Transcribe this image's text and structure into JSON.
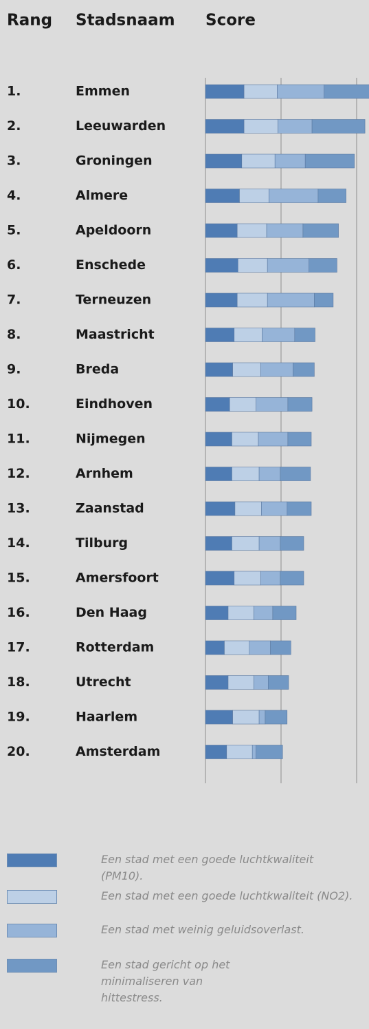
{
  "chart_data": {
    "type": "bar",
    "orientation": "horizontal",
    "stacked": true,
    "column_headers": [
      "Rang",
      "Stadsnaam",
      "Score"
    ],
    "ranks": [
      "1.",
      "2.",
      "3.",
      "4.",
      "5.",
      "6.",
      "7.",
      "8.",
      "9.",
      "10.",
      "11.",
      "12.",
      "13.",
      "14.",
      "15.",
      "16.",
      "17.",
      "18.",
      "19.",
      "20."
    ],
    "categories": [
      "Emmen",
      "Leeuwarden",
      "Groningen",
      "Almere",
      "Apeldoorn",
      "Enschede",
      "Terneuzen",
      "Maastricht",
      "Breda",
      "Eindhoven",
      "Nijmegen",
      "Arnhem",
      "Zaanstad",
      "Tilburg",
      "Amersfoort",
      "Den Haag",
      "Rotterdam",
      "Utrecht",
      "Haarlem",
      "Amsterdam"
    ],
    "series": [
      {
        "name": "Een stad met een goede luchtkwaliteit (PM10).",
        "color": "#4f7cb4",
        "values": [
          0.51,
          0.51,
          0.48,
          0.45,
          0.42,
          0.43,
          0.42,
          0.38,
          0.36,
          0.32,
          0.35,
          0.35,
          0.39,
          0.35,
          0.38,
          0.3,
          0.25,
          0.3,
          0.36,
          0.28
        ]
      },
      {
        "name": "Een stad met een goede luchtkwaliteit (NO2).",
        "color": "#bdd0e6",
        "values": [
          0.44,
          0.45,
          0.44,
          0.39,
          0.39,
          0.39,
          0.4,
          0.37,
          0.37,
          0.35,
          0.35,
          0.36,
          0.35,
          0.36,
          0.35,
          0.34,
          0.33,
          0.34,
          0.35,
          0.34
        ]
      },
      {
        "name": "Een stad met weinig geluidsoverlast.",
        "color": "#96b4d8",
        "values": [
          0.62,
          0.45,
          0.4,
          0.65,
          0.48,
          0.55,
          0.62,
          0.43,
          0.43,
          0.42,
          0.39,
          0.28,
          0.34,
          0.28,
          0.26,
          0.25,
          0.28,
          0.19,
          0.08,
          0.05
        ]
      },
      {
        "name": "Een stad gericht op het minimaliseren van hittestress.",
        "color": "#7198c4",
        "values": [
          0.6,
          0.7,
          0.65,
          0.37,
          0.47,
          0.37,
          0.25,
          0.27,
          0.28,
          0.32,
          0.31,
          0.4,
          0.32,
          0.31,
          0.31,
          0.31,
          0.27,
          0.27,
          0.29,
          0.35
        ]
      }
    ],
    "xlim": [
      0,
      2.2
    ],
    "xticks": [
      0,
      1,
      2
    ],
    "grid": true
  }
}
